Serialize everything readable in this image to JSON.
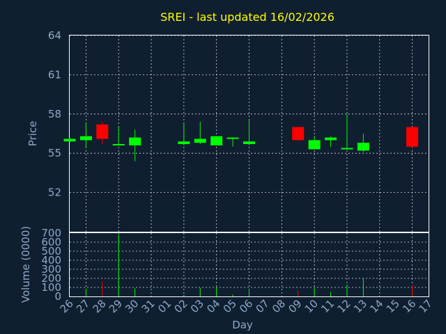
{
  "chart_data": {
    "type": "candlestick",
    "title": "SREI - last updated 16/02/2026",
    "xlabel": "Day",
    "colors": {
      "up": "#00ff00",
      "down": "#ff0000",
      "title": "#ffff00",
      "text": "#8fa8c8",
      "background": "#0f1f30"
    },
    "price_panel": {
      "ylabel": "Price",
      "ylim": [
        49,
        64
      ],
      "yticks": [
        52,
        55,
        58,
        61,
        64
      ],
      "grid": true
    },
    "volume_panel": {
      "ylabel": "Volume (0000)",
      "ylim": [
        0,
        700
      ],
      "yticks": [
        0,
        100,
        200,
        300,
        400,
        500,
        600,
        700
      ],
      "grid": true
    },
    "x_ticks": [
      "26",
      "27",
      "28",
      "29",
      "30",
      "31",
      "01",
      "02",
      "03",
      "04",
      "05",
      "06",
      "07",
      "08",
      "09",
      "10",
      "11",
      "12",
      "13",
      "14",
      "15",
      "16",
      "17"
    ],
    "candles": [
      {
        "x": "26",
        "open": 55.9,
        "close": 56.1,
        "high": 56.2,
        "low": 55.8,
        "volume": 0
      },
      {
        "x": "27",
        "open": 56.0,
        "close": 56.3,
        "high": 57.3,
        "low": 55.4,
        "volume": 85
      },
      {
        "x": "28",
        "open": 57.2,
        "close": 56.1,
        "high": 57.4,
        "low": 55.7,
        "volume": 165
      },
      {
        "x": "29",
        "open": 55.6,
        "close": 55.7,
        "high": 57.0,
        "low": 55.6,
        "volume": 680
      },
      {
        "x": "30",
        "open": 55.6,
        "close": 56.2,
        "high": 56.8,
        "low": 54.4,
        "volume": 90
      },
      {
        "x": "02",
        "open": 55.7,
        "close": 55.9,
        "high": 57.3,
        "low": 55.6,
        "volume": 20
      },
      {
        "x": "03",
        "open": 55.8,
        "close": 56.1,
        "high": 57.4,
        "low": 55.7,
        "volume": 95
      },
      {
        "x": "04",
        "open": 55.6,
        "close": 56.3,
        "high": 56.3,
        "low": 55.6,
        "volume": 100
      },
      {
        "x": "05",
        "open": 56.1,
        "close": 56.2,
        "high": 56.2,
        "low": 55.5,
        "volume": 20
      },
      {
        "x": "06",
        "open": 55.7,
        "close": 55.9,
        "high": 57.5,
        "low": 55.6,
        "volume": 80
      },
      {
        "x": "09",
        "open": 57.0,
        "close": 56.0,
        "high": 57.0,
        "low": 56.0,
        "volume": 60
      },
      {
        "x": "10",
        "open": 55.3,
        "close": 56.0,
        "high": 56.3,
        "low": 55.3,
        "volume": 90
      },
      {
        "x": "11",
        "open": 56.0,
        "close": 56.2,
        "high": 56.3,
        "low": 55.5,
        "volume": 50
      },
      {
        "x": "12",
        "open": 55.3,
        "close": 55.4,
        "high": 58.0,
        "low": 55.3,
        "volume": 130
      },
      {
        "x": "13",
        "open": 55.2,
        "close": 55.8,
        "high": 56.5,
        "low": 55.1,
        "volume": 195
      },
      {
        "x": "16",
        "open": 57.0,
        "close": 55.5,
        "high": 57.0,
        "low": 55.4,
        "volume": 125
      }
    ]
  }
}
